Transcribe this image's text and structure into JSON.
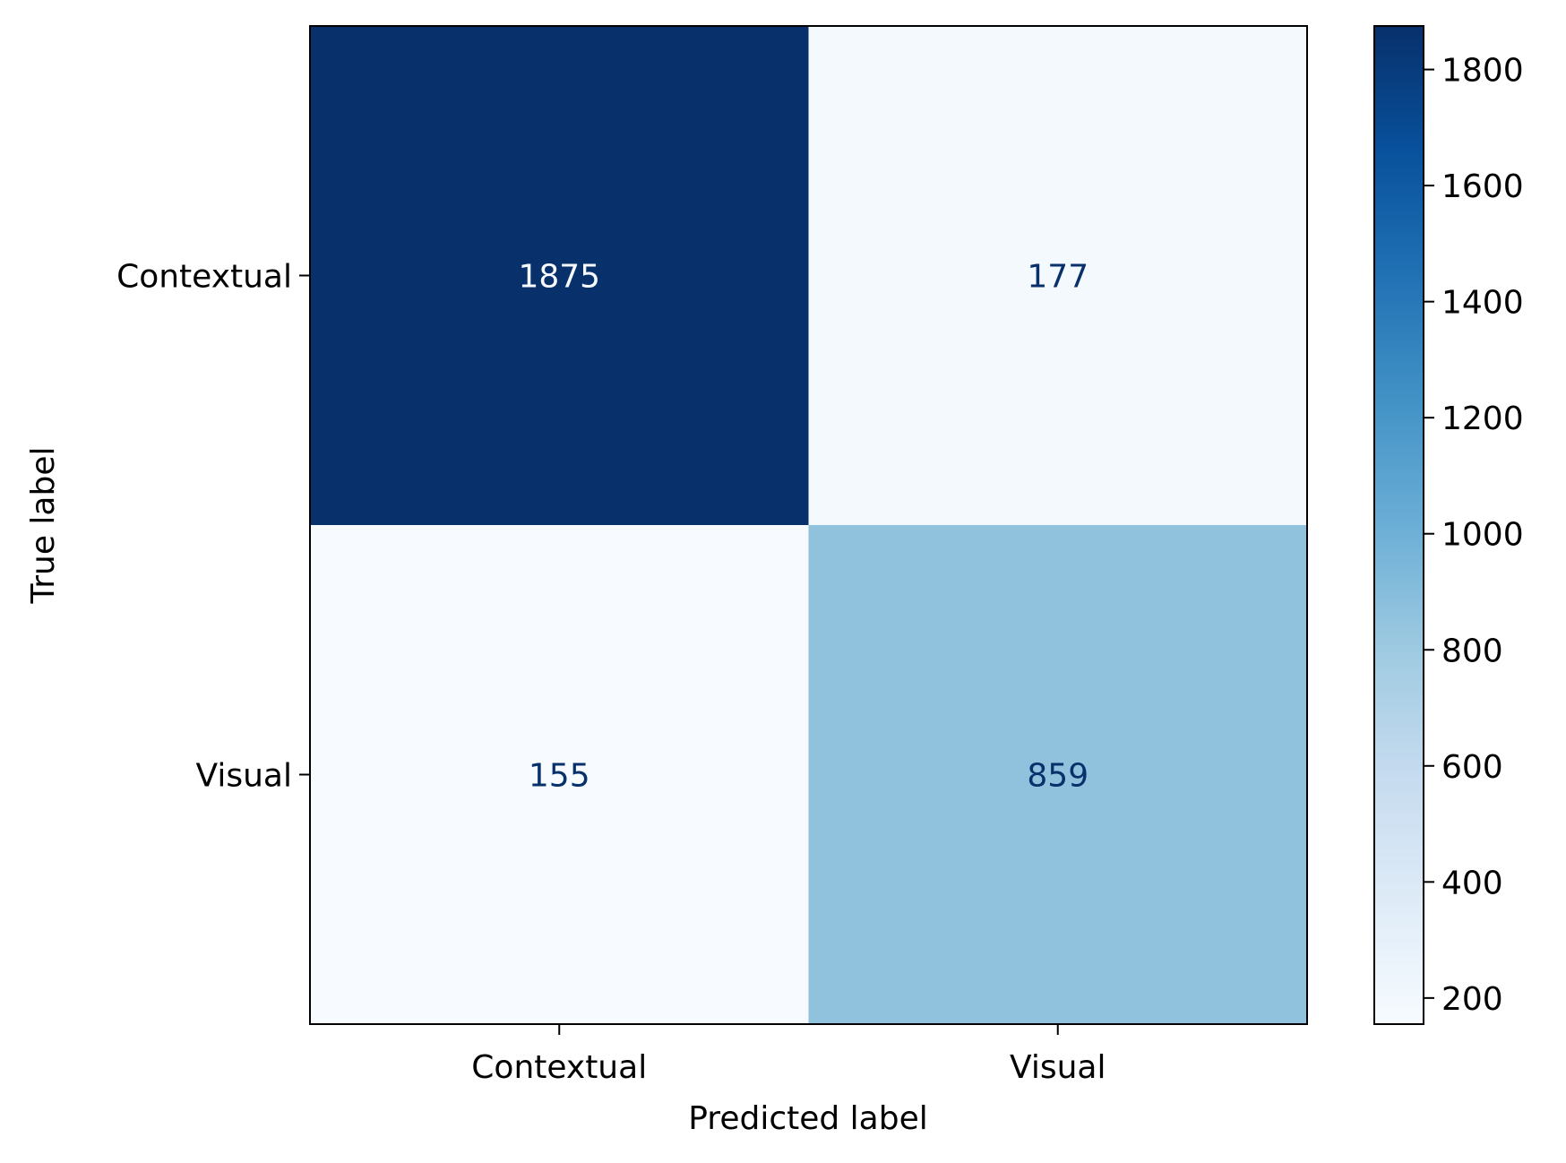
{
  "chart_data": {
    "type": "heatmap",
    "title": "",
    "xlabel": "Predicted label",
    "ylabel": "True label",
    "x_categories": [
      "Contextual",
      "Visual"
    ],
    "y_categories": [
      "Contextual",
      "Visual"
    ],
    "matrix": [
      [
        1875,
        177
      ],
      [
        155,
        859
      ]
    ],
    "colormap": "Blues",
    "colorbar": {
      "min": 155,
      "max": 1875,
      "ticks": [
        200,
        400,
        600,
        800,
        1000,
        1200,
        1400,
        1600,
        1800
      ]
    },
    "colors": {
      "cmap_low": "#f7fbff",
      "cmap_high": "#08306b",
      "text_on_dark": "#f7fbff",
      "text_on_light": "#08306b"
    }
  }
}
